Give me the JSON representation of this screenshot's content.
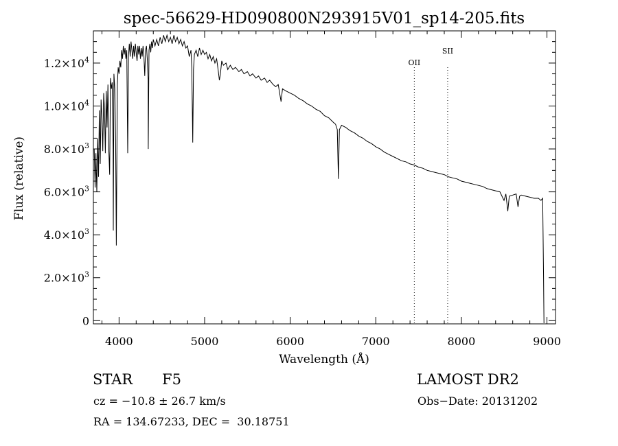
{
  "chart_data": {
    "type": "line",
    "title": "spec-56629-HD090800N293915V01_sp14-205.fits",
    "xlabel": "Wavelength (Å)",
    "ylabel": "Flux (relative)",
    "xlim": [
      3700,
      9100
    ],
    "ylim": [
      -150,
      13500
    ],
    "x_ticks": [
      4000,
      5000,
      6000,
      7000,
      8000,
      9000
    ],
    "y_ticks": [
      {
        "value": 0,
        "mantissa": "0",
        "exponent": ""
      },
      {
        "value": 2000,
        "mantissa": "2.0×10",
        "exponent": "3"
      },
      {
        "value": 4000,
        "mantissa": "4.0×10",
        "exponent": "3"
      },
      {
        "value": 6000,
        "mantissa": "6.0×10",
        "exponent": "3"
      },
      {
        "value": 8000,
        "mantissa": "8.0×10",
        "exponent": "3"
      },
      {
        "value": 10000,
        "mantissa": "1.0×10",
        "exponent": "4"
      },
      {
        "value": 12000,
        "mantissa": "1.2×10",
        "exponent": "4"
      }
    ],
    "grid": false,
    "line_markers": [
      {
        "label": "OII",
        "wavelength": 7450
      },
      {
        "label": "SII",
        "wavelength": 7840
      }
    ],
    "series": [
      {
        "points": [
          [
            3710,
            8000
          ],
          [
            3720,
            6200
          ],
          [
            3730,
            7800
          ],
          [
            3740,
            6000
          ],
          [
            3750,
            8500
          ],
          [
            3760,
            6700
          ],
          [
            3770,
            9800
          ],
          [
            3780,
            7300
          ],
          [
            3790,
            10300
          ],
          [
            3800,
            9400
          ],
          [
            3810,
            7900
          ],
          [
            3820,
            10600
          ],
          [
            3830,
            9800
          ],
          [
            3840,
            7800
          ],
          [
            3850,
            10700
          ],
          [
            3860,
            9000
          ],
          [
            3870,
            11000
          ],
          [
            3880,
            8000
          ],
          [
            3890,
            6800
          ],
          [
            3900,
            11300
          ],
          [
            3910,
            10800
          ],
          [
            3920,
            11100
          ],
          [
            3930,
            8000
          ],
          [
            3933,
            4200
          ],
          [
            3940,
            11500
          ],
          [
            3950,
            10800
          ],
          [
            3960,
            8400
          ],
          [
            3968,
            3500
          ],
          [
            3980,
            11000
          ],
          [
            3990,
            11800
          ],
          [
            4000,
            11500
          ],
          [
            4010,
            12100
          ],
          [
            4020,
            11800
          ],
          [
            4030,
            12600
          ],
          [
            4040,
            12200
          ],
          [
            4050,
            12800
          ],
          [
            4060,
            12400
          ],
          [
            4070,
            12700
          ],
          [
            4080,
            12200
          ],
          [
            4090,
            12600
          ],
          [
            4101,
            7800
          ],
          [
            4110,
            12300
          ],
          [
            4120,
            12900
          ],
          [
            4130,
            12300
          ],
          [
            4140,
            13000
          ],
          [
            4150,
            12600
          ],
          [
            4160,
            12200
          ],
          [
            4170,
            12800
          ],
          [
            4180,
            12300
          ],
          [
            4190,
            12900
          ],
          [
            4200,
            12500
          ],
          [
            4210,
            12100
          ],
          [
            4220,
            12800
          ],
          [
            4230,
            12400
          ],
          [
            4240,
            12800
          ],
          [
            4250,
            12200
          ],
          [
            4260,
            12700
          ],
          [
            4270,
            12300
          ],
          [
            4280,
            12800
          ],
          [
            4290,
            12400
          ],
          [
            4300,
            11400
          ],
          [
            4310,
            12600
          ],
          [
            4320,
            12800
          ],
          [
            4330,
            12200
          ],
          [
            4340,
            11200
          ],
          [
            4341,
            8000
          ],
          [
            4350,
            12600
          ],
          [
            4360,
            12900
          ],
          [
            4370,
            12500
          ],
          [
            4380,
            13000
          ],
          [
            4390,
            12700
          ],
          [
            4400,
            13100
          ],
          [
            4420,
            12800
          ],
          [
            4440,
            13100
          ],
          [
            4460,
            12800
          ],
          [
            4480,
            13200
          ],
          [
            4500,
            12900
          ],
          [
            4520,
            13300
          ],
          [
            4540,
            13000
          ],
          [
            4560,
            13300
          ],
          [
            4580,
            13000
          ],
          [
            4600,
            13200
          ],
          [
            4620,
            12900
          ],
          [
            4640,
            13300
          ],
          [
            4660,
            13000
          ],
          [
            4680,
            13200
          ],
          [
            4700,
            12900
          ],
          [
            4720,
            13100
          ],
          [
            4740,
            12800
          ],
          [
            4760,
            13000
          ],
          [
            4780,
            12700
          ],
          [
            4800,
            12800
          ],
          [
            4820,
            12300
          ],
          [
            4840,
            12600
          ],
          [
            4850,
            11800
          ],
          [
            4861,
            8300
          ],
          [
            4870,
            11700
          ],
          [
            4880,
            12400
          ],
          [
            4900,
            12600
          ],
          [
            4920,
            12300
          ],
          [
            4940,
            12700
          ],
          [
            4960,
            12400
          ],
          [
            4980,
            12600
          ],
          [
            5000,
            12400
          ],
          [
            5020,
            12500
          ],
          [
            5040,
            12200
          ],
          [
            5060,
            12400
          ],
          [
            5080,
            12100
          ],
          [
            5100,
            12300
          ],
          [
            5120,
            12000
          ],
          [
            5140,
            12200
          ],
          [
            5160,
            11600
          ],
          [
            5172,
            11200
          ],
          [
            5184,
            11500
          ],
          [
            5200,
            12100
          ],
          [
            5220,
            11900
          ],
          [
            5250,
            12000
          ],
          [
            5270,
            11700
          ],
          [
            5300,
            11900
          ],
          [
            5330,
            11700
          ],
          [
            5360,
            11800
          ],
          [
            5400,
            11600
          ],
          [
            5430,
            11700
          ],
          [
            5460,
            11500
          ],
          [
            5500,
            11600
          ],
          [
            5530,
            11400
          ],
          [
            5560,
            11500
          ],
          [
            5600,
            11300
          ],
          [
            5630,
            11400
          ],
          [
            5660,
            11200
          ],
          [
            5700,
            11300
          ],
          [
            5730,
            11100
          ],
          [
            5760,
            11200
          ],
          [
            5800,
            11000
          ],
          [
            5830,
            10900
          ],
          [
            5860,
            11000
          ],
          [
            5893,
            10200
          ],
          [
            5910,
            10800
          ],
          [
            5950,
            10700
          ],
          [
            6000,
            10600
          ],
          [
            6050,
            10500
          ],
          [
            6100,
            10350
          ],
          [
            6150,
            10250
          ],
          [
            6200,
            10100
          ],
          [
            6250,
            10000
          ],
          [
            6300,
            9850
          ],
          [
            6350,
            9750
          ],
          [
            6400,
            9550
          ],
          [
            6450,
            9450
          ],
          [
            6500,
            9250
          ],
          [
            6530,
            9150
          ],
          [
            6550,
            8900
          ],
          [
            6563,
            6600
          ],
          [
            6575,
            8900
          ],
          [
            6600,
            9100
          ],
          [
            6650,
            9000
          ],
          [
            6700,
            8850
          ],
          [
            6750,
            8750
          ],
          [
            6800,
            8600
          ],
          [
            6850,
            8500
          ],
          [
            6900,
            8350
          ],
          [
            6950,
            8250
          ],
          [
            7000,
            8100
          ],
          [
            7050,
            8000
          ],
          [
            7100,
            7850
          ],
          [
            7150,
            7750
          ],
          [
            7200,
            7650
          ],
          [
            7250,
            7550
          ],
          [
            7300,
            7450
          ],
          [
            7350,
            7400
          ],
          [
            7400,
            7300
          ],
          [
            7450,
            7250
          ],
          [
            7500,
            7150
          ],
          [
            7550,
            7100
          ],
          [
            7600,
            7000
          ],
          [
            7650,
            6950
          ],
          [
            7700,
            6900
          ],
          [
            7750,
            6850
          ],
          [
            7800,
            6800
          ],
          [
            7850,
            6700
          ],
          [
            7900,
            6650
          ],
          [
            7950,
            6600
          ],
          [
            8000,
            6500
          ],
          [
            8050,
            6450
          ],
          [
            8100,
            6400
          ],
          [
            8150,
            6350
          ],
          [
            8200,
            6300
          ],
          [
            8250,
            6250
          ],
          [
            8300,
            6150
          ],
          [
            8350,
            6100
          ],
          [
            8400,
            6050
          ],
          [
            8450,
            6000
          ],
          [
            8498,
            5600
          ],
          [
            8520,
            5900
          ],
          [
            8542,
            5100
          ],
          [
            8560,
            5800
          ],
          [
            8600,
            5850
          ],
          [
            8640,
            5900
          ],
          [
            8662,
            5300
          ],
          [
            8680,
            5800
          ],
          [
            8700,
            5850
          ],
          [
            8750,
            5800
          ],
          [
            8800,
            5750
          ],
          [
            8850,
            5700
          ],
          [
            8900,
            5700
          ],
          [
            8930,
            5600
          ],
          [
            8950,
            5700
          ],
          [
            8960,
            2000
          ],
          [
            8965,
            -100
          ],
          [
            8970,
            -100
          ]
        ]
      }
    ]
  },
  "info": {
    "object_class": "STAR",
    "subclass": "F5",
    "survey": "LAMOST DR2",
    "redshift": "cz = −10.8 ± 26.7 km/s",
    "obs_date": "Obs−Date: 20131202",
    "coordinates": "RA = 134.67233, DEC =  30.18751"
  }
}
